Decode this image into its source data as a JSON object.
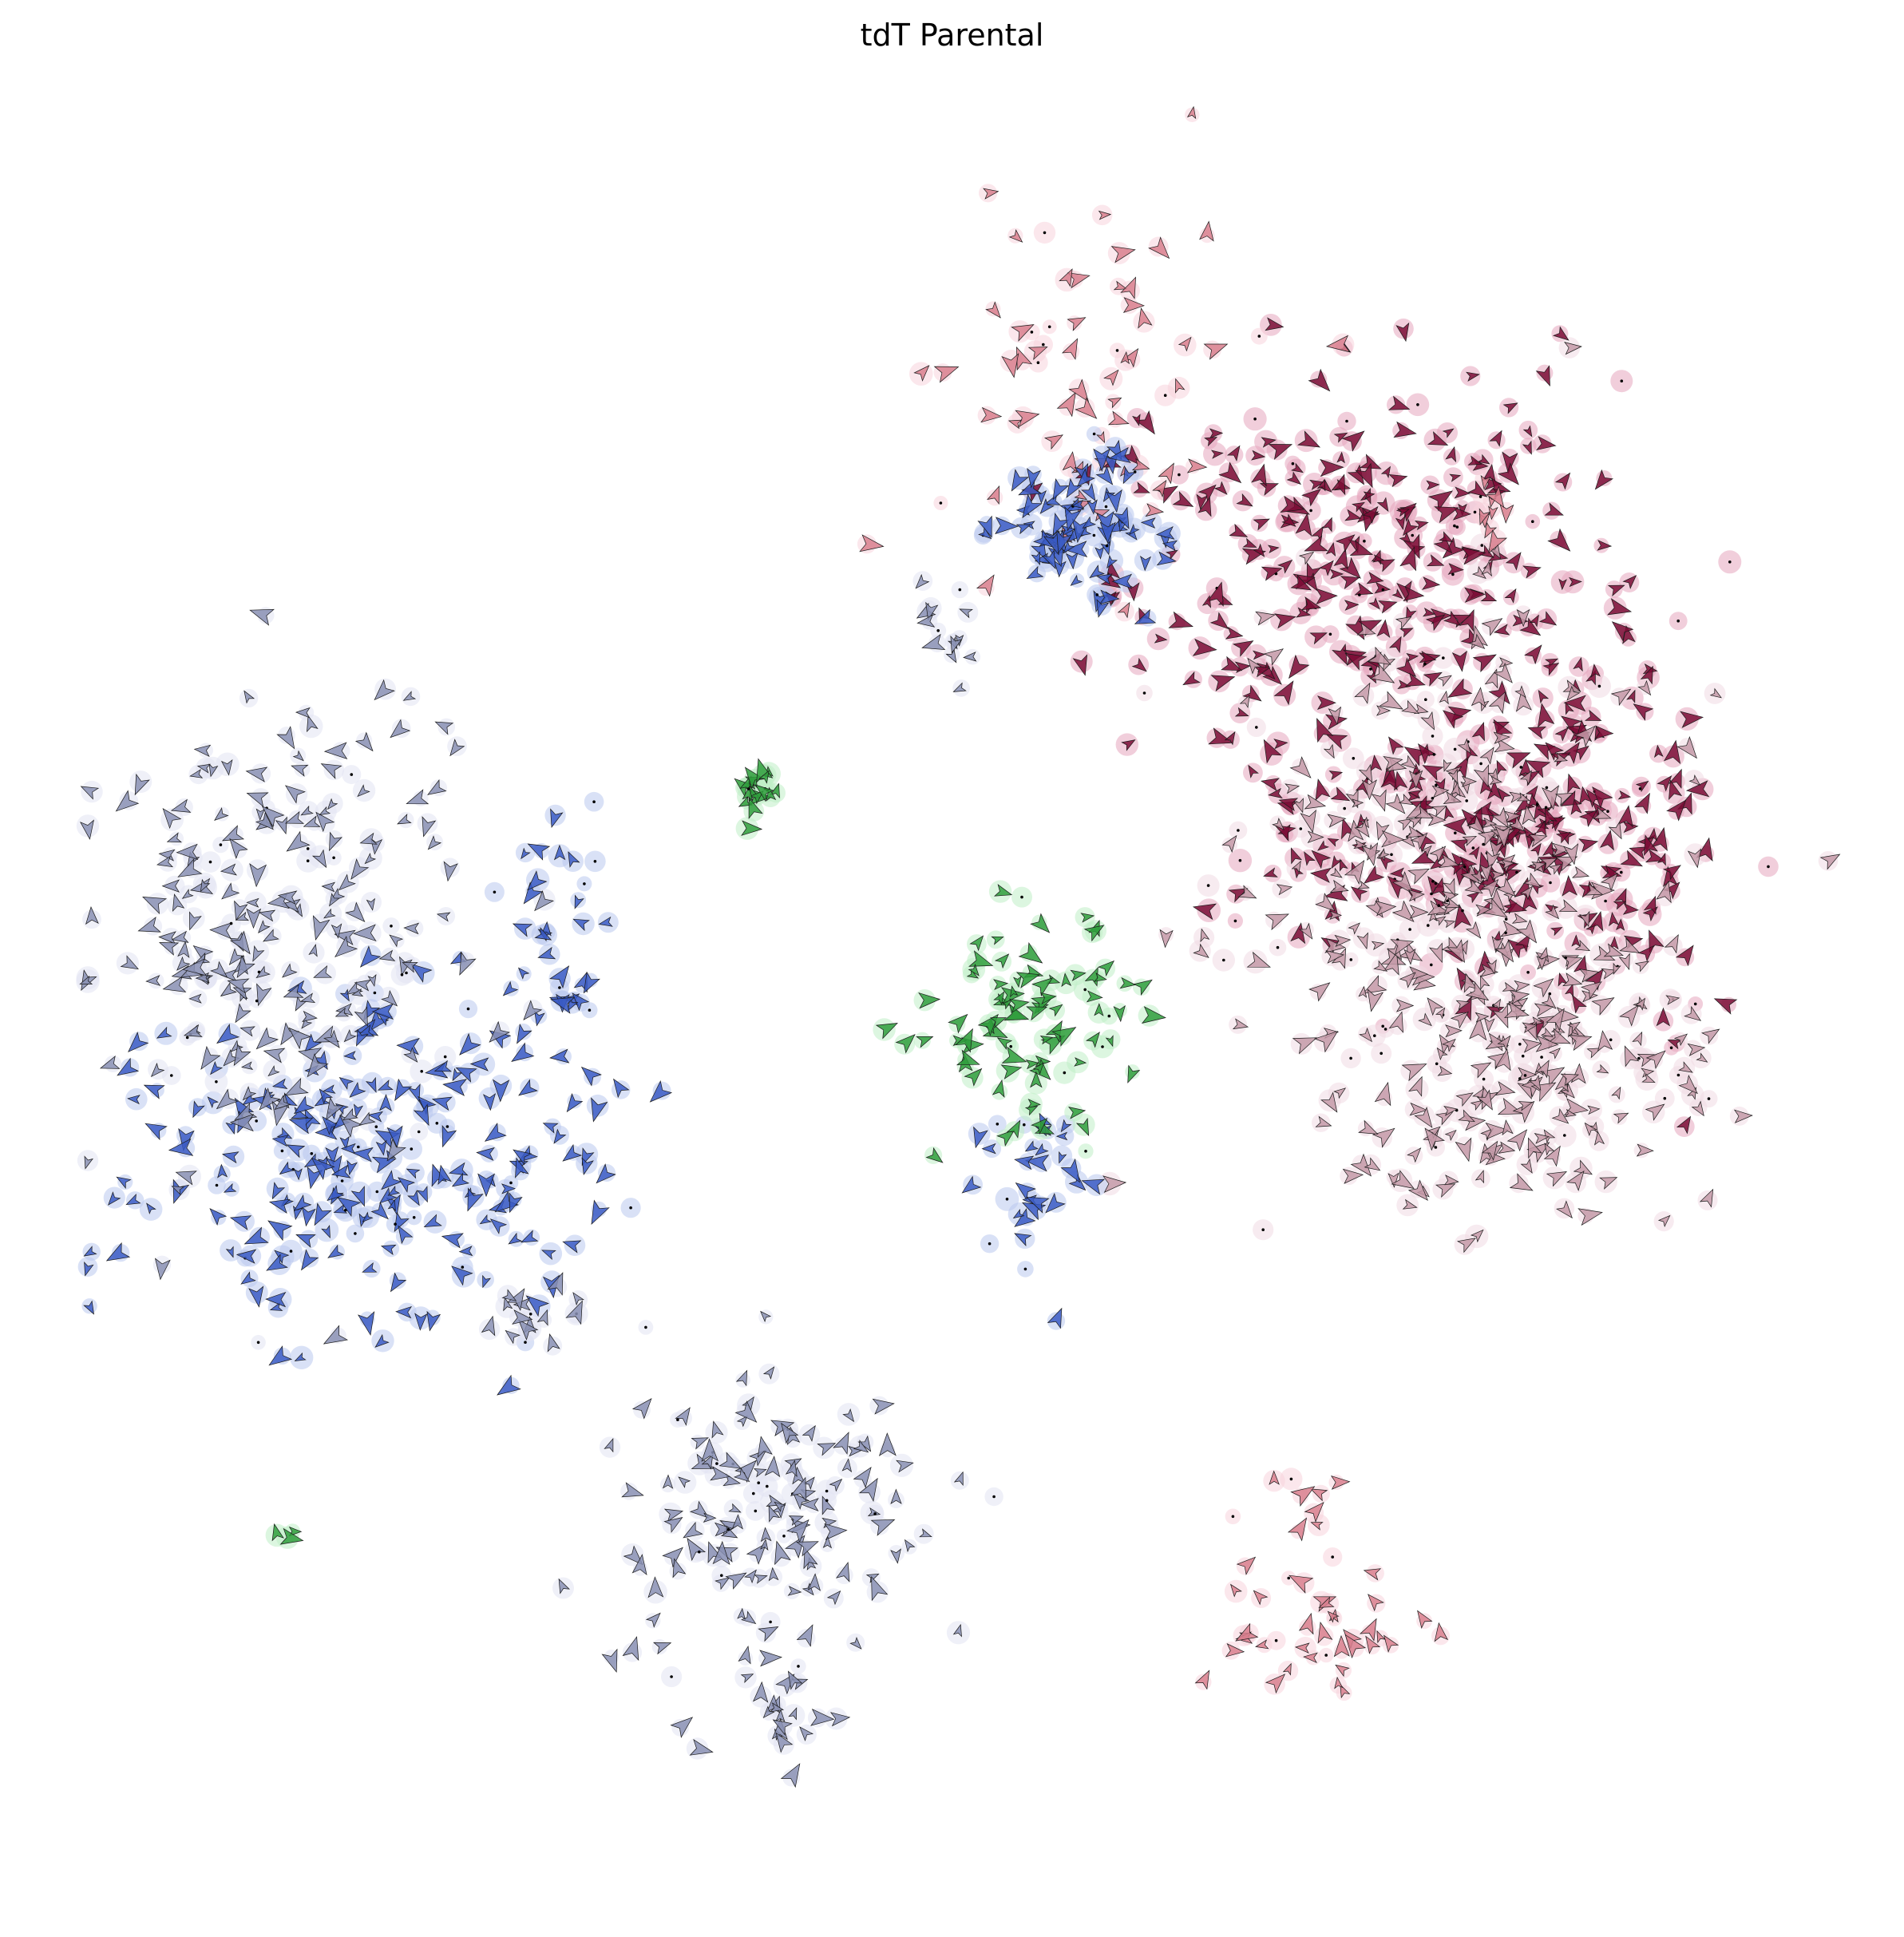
{
  "chart_data": {
    "type": "scatter",
    "title": "tdT Parental",
    "xlabel": "",
    "ylabel": "",
    "axes_visible": false,
    "grid": false,
    "legend": "none",
    "marker": "velocity-arrow",
    "xlim": [
      0,
      100
    ],
    "ylim": [
      0,
      100
    ],
    "series": [
      {
        "color": "#7a0c35",
        "halo": "#e6a6be",
        "clusters": [
          {
            "cx": 73.5,
            "cy": 74.0,
            "sx": 7.0,
            "sy": 5.0,
            "n": 260
          },
          {
            "cx": 77.2,
            "cy": 58.8,
            "sx": 5.5,
            "sy": 3.0,
            "n": 140
          },
          {
            "cx": 86.8,
            "cy": 58.5,
            "sx": 4.5,
            "sy": 7.0,
            "n": 150
          }
        ]
      },
      {
        "color": "#c49aa8",
        "halo": "#f1dbe3",
        "clusters": [
          {
            "cx": 78.0,
            "cy": 55.0,
            "sx": 6.0,
            "sy": 8.0,
            "n": 330
          },
          {
            "cx": 83.0,
            "cy": 44.5,
            "sx": 5.0,
            "sy": 4.0,
            "n": 150
          }
        ]
      },
      {
        "color": "#d87f8e",
        "halo": "#f7d4dc",
        "clusters": [
          {
            "cx": 57.5,
            "cy": 83.8,
            "sx": 4.5,
            "sy": 5.5,
            "n": 65
          },
          {
            "cx": 71.0,
            "cy": 12.0,
            "sx": 4.0,
            "sy": 1.5,
            "n": 35
          },
          {
            "cx": 69.5,
            "cy": 18.5,
            "sx": 1.2,
            "sy": 2.0,
            "n": 12
          },
          {
            "cx": 80.6,
            "cy": 76.5,
            "sx": 0.4,
            "sy": 1.2,
            "n": 10
          }
        ]
      },
      {
        "color": "#3a5bc4",
        "halo": "#b9c8ef",
        "clusters": [
          {
            "cx": 57.3,
            "cy": 76.6,
            "sx": 2.3,
            "sy": 2.3,
            "n": 90
          },
          {
            "cx": 15.8,
            "cy": 39.0,
            "sx": 6.0,
            "sy": 5.0,
            "n": 230
          },
          {
            "cx": 27.2,
            "cy": 51.5,
            "sx": 1.6,
            "sy": 3.5,
            "n": 35
          },
          {
            "cx": 53.8,
            "cy": 39.0,
            "sx": 1.8,
            "sy": 2.5,
            "n": 30
          }
        ]
      },
      {
        "color": "#8a91b4",
        "halo": "#e1e4f2",
        "clusters": [
          {
            "cx": 11.0,
            "cy": 52.0,
            "sx": 5.0,
            "sy": 7.0,
            "n": 220
          },
          {
            "cx": 39.0,
            "cy": 18.5,
            "sx": 4.0,
            "sy": 4.5,
            "n": 150
          },
          {
            "cx": 40.2,
            "cy": 7.5,
            "sx": 0.6,
            "sy": 2.0,
            "n": 14
          },
          {
            "cx": 25.5,
            "cy": 30.5,
            "sx": 2.0,
            "sy": 1.2,
            "n": 16
          },
          {
            "cx": 49.3,
            "cy": 70.5,
            "sx": 0.8,
            "sy": 2.0,
            "n": 14
          }
        ]
      },
      {
        "color": "#2f9e3c",
        "halo": "#bfeec6",
        "clusters": [
          {
            "cx": 38.5,
            "cy": 60.5,
            "sx": 0.7,
            "sy": 0.7,
            "n": 22
          },
          {
            "cx": 54.5,
            "cy": 47.5,
            "sx": 3.2,
            "sy": 3.0,
            "n": 90
          },
          {
            "cx": 11.4,
            "cy": 17.9,
            "sx": 0.2,
            "sy": 0.2,
            "n": 3
          }
        ]
      }
    ]
  }
}
